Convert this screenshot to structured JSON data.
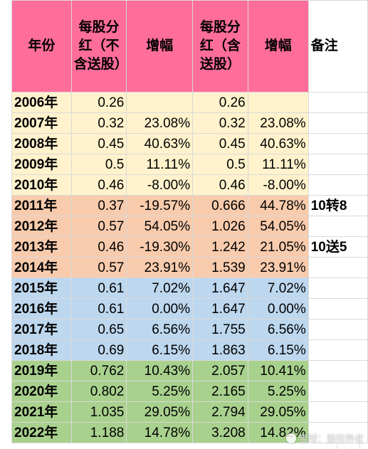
{
  "headers": {
    "year": "年份",
    "div_ex": "每股分红（不含送股）",
    "inc_ex": "增幅",
    "div_inc": "每股分红（含送股）",
    "inc_inc": "增幅",
    "note": "备注"
  },
  "rows": [
    {
      "year": "2006年",
      "div": "0.26",
      "inc": "",
      "div2": "0.26",
      "inc2": "",
      "note": ""
    },
    {
      "year": "2007年",
      "div": "0.32",
      "inc": "23.08%",
      "div2": "0.32",
      "inc2": "23.08%",
      "note": ""
    },
    {
      "year": "2008年",
      "div": "0.45",
      "inc": "40.63%",
      "div2": "0.45",
      "inc2": "40.63%",
      "note": ""
    },
    {
      "year": "2009年",
      "div": "0.5",
      "inc": "11.11%",
      "div2": "0.5",
      "inc2": "11.11%",
      "note": ""
    },
    {
      "year": "2010年",
      "div": "0.46",
      "inc": "-8.00%",
      "div2": "0.46",
      "inc2": "-8.00%",
      "note": ""
    },
    {
      "year": "2011年",
      "div": "0.37",
      "inc": "-19.57%",
      "div2": "0.666",
      "inc2": "44.78%",
      "note": "10转8"
    },
    {
      "year": "2012年",
      "div": "0.57",
      "inc": "54.05%",
      "div2": "1.026",
      "inc2": "54.05%",
      "note": ""
    },
    {
      "year": "2013年",
      "div": "0.46",
      "inc": "-19.30%",
      "div2": "1.242",
      "inc2": "21.05%",
      "note": "10送5"
    },
    {
      "year": "2014年",
      "div": "0.57",
      "inc": "23.91%",
      "div2": "1.539",
      "inc2": "23.91%",
      "note": ""
    },
    {
      "year": "2015年",
      "div": "0.61",
      "inc": "7.02%",
      "div2": "1.647",
      "inc2": "7.02%",
      "note": ""
    },
    {
      "year": "2016年",
      "div": "0.61",
      "inc": "0.00%",
      "div2": "1.647",
      "inc2": "0.00%",
      "note": ""
    },
    {
      "year": "2017年",
      "div": "0.65",
      "inc": "6.56%",
      "div2": "1.755",
      "inc2": "6.56%",
      "note": ""
    },
    {
      "year": "2018年",
      "div": "0.69",
      "inc": "6.15%",
      "div2": "1.863",
      "inc2": "6.15%",
      "note": ""
    },
    {
      "year": "2019年",
      "div": "0.762",
      "inc": "10.43%",
      "div2": "2.057",
      "inc2": "10.41%",
      "note": ""
    },
    {
      "year": "2020年",
      "div": "0.802",
      "inc": "5.25%",
      "div2": "2.165",
      "inc2": "5.25%",
      "note": ""
    },
    {
      "year": "2021年",
      "div": "1.035",
      "inc": "29.05%",
      "div2": "2.794",
      "inc2": "29.05%",
      "note": ""
    },
    {
      "year": "2022年",
      "div": "1.188",
      "inc": "14.78%",
      "div2": "3.208",
      "inc2": "14.82%",
      "note": ""
    }
  ],
  "watermark": "雪球：股权养老",
  "colors": {
    "header": "#ff6d9b",
    "group_2006_2010": "#fff2cc",
    "group_2011_2014": "#f8cbad",
    "group_2015_2018": "#bdd7ee",
    "group_2019_2022": "#a9d18e",
    "highlight_red": "#ff0000",
    "note_red": "#c00000"
  }
}
